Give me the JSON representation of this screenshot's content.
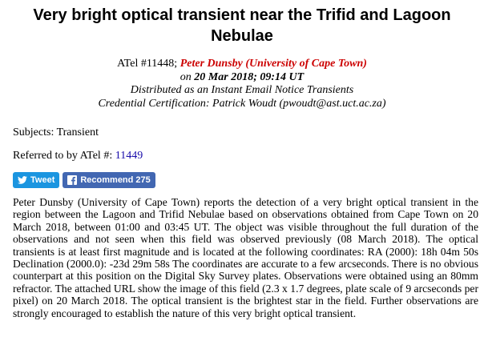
{
  "header": {
    "title": "Very bright optical transient near the Trifid and Lagoon Nebulae",
    "atel": "ATel #11448;",
    "author": "Peter Dunsby (University of Cape Town)",
    "date_prefix": "on",
    "date": "20 Mar 2018; 09:14 UT",
    "distribution": "Distributed as an Instant Email Notice Transients",
    "credential": "Credential Certification: Patrick Woudt (pwoudt@ast.uct.ac.za)"
  },
  "meta": {
    "subjects": "Subjects: Transient",
    "referred_label": "Referred to by ATel #:",
    "referred_link": "11449"
  },
  "buttons": {
    "tweet": "Tweet",
    "recommend": "Recommend 275"
  },
  "body": "Peter Dunsby (University of Cape Town) reports the detection of a very bright optical transient in the region between the Lagoon and Trifid Nebulae based on observations obtained from Cape Town on 20 March 2018, between 01:00 and 03:45 UT. The object was visible throughout the full duration of the observations and not seen when this field was observed previously (08 March 2018). The optical transients is at least first magnitude and is located at the following coordinates: RA (2000): 18h 04m 50s Declination (2000.0): -23d 29m 58s The coordinates are accurate to a few arcseconds. There is no obvious counterpart at this position on the Digital Sky Survey plates. Observations were obtained using an 80mm refractor. The attached URL show the image of this field (2.3 x 1.7 degrees, plate scale of 9 arcseconds per pixel) on 20 March 2018. The optical transient is the brightest star in the field. Further observations are strongly encouraged to establish the nature of this very bright optical transient."
}
